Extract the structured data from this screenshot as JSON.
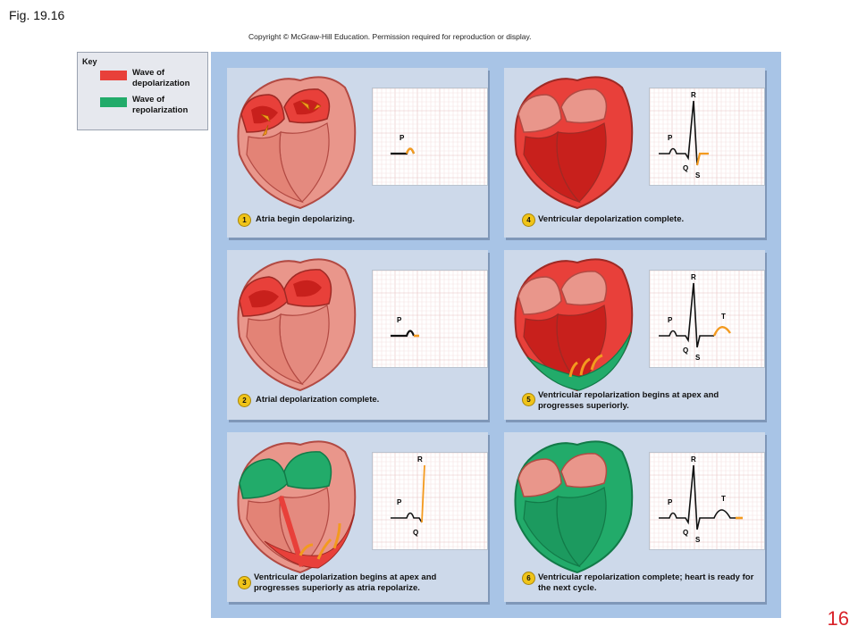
{
  "figure": "Fig. 19.16",
  "copyright": "Copyright © McGraw-Hill Education. Permission required for reproduction or display.",
  "page_number": "16",
  "colors": {
    "depolarization": "#e8403a",
    "repolarization": "#22ab6a",
    "resting_tissue": "#e9968b",
    "ecg_trace": "#111111",
    "ecg_highlight": "#f39a1f",
    "panel_bg": "#cdd9ea",
    "canvas_bg": "#a8c4e6"
  },
  "key": {
    "title": "Key",
    "depolarization_label": "Wave of depolarization",
    "repolarization_label": "Wave of repolarization"
  },
  "panels": [
    {
      "number": "1",
      "caption": "Atria begin depolarizing.",
      "ecg_labels": {
        "P": "P"
      }
    },
    {
      "number": "2",
      "caption": "Atrial depolarization complete.",
      "ecg_labels": {
        "P": "P"
      }
    },
    {
      "number": "3",
      "caption": "Ventricular depolarization begins at apex and progresses superiorly as atria repolarize.",
      "ecg_labels": {
        "P": "P",
        "R": "R",
        "Q": "Q"
      }
    },
    {
      "number": "4",
      "caption": "Ventricular depolarization complete.",
      "ecg_labels": {
        "P": "P",
        "R": "R",
        "Q": "Q",
        "S": "S"
      }
    },
    {
      "number": "5",
      "caption": "Ventricular repolarization begins at apex and progresses superiorly.",
      "ecg_labels": {
        "P": "P",
        "R": "R",
        "Q": "Q",
        "S": "S",
        "T": "T"
      }
    },
    {
      "number": "6",
      "caption": "Ventricular repolarization complete; heart is ready for the next cycle.",
      "ecg_labels": {
        "P": "P",
        "R": "R",
        "Q": "Q",
        "S": "S",
        "T": "T"
      }
    }
  ]
}
